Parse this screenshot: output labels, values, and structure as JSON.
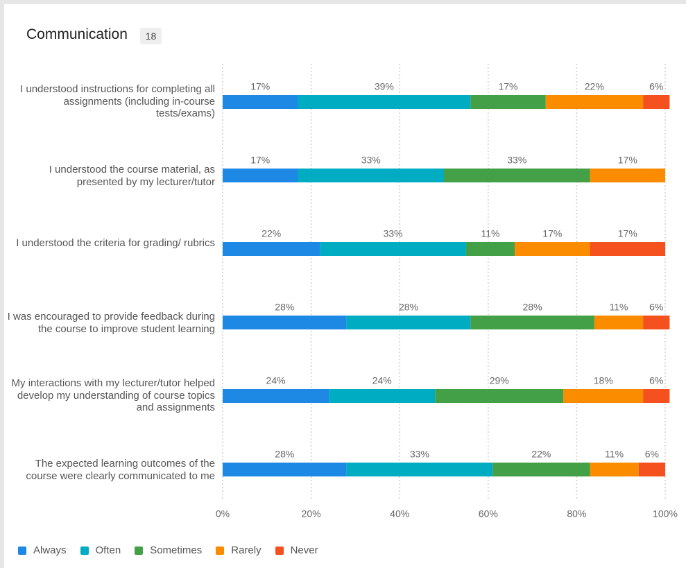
{
  "chart_data": {
    "type": "stacked-bar-horizontal",
    "title": "Communication",
    "badge": 18,
    "categories": [
      "I understood instructions for completing all assignments (including in-course tests/exams)",
      "I understood the course material, as presented by my lecturer/tutor",
      "I understood the criteria for grading/ rubrics",
      "I was encouraged to provide feedback during the course to improve student learning",
      "My interactions with my lecturer/tutor helped develop my understanding of course topics and assignments",
      "The expected learning outcomes of the course were clearly communicated to me"
    ],
    "series": [
      {
        "name": "Always",
        "color": "#1e88e5",
        "values": [
          17,
          17,
          22,
          28,
          24,
          28
        ],
        "value_labels": [
          "17%",
          "17%",
          "22%",
          "28%",
          "24%",
          "28%"
        ]
      },
      {
        "name": "Often",
        "color": "#00acc1",
        "values": [
          39,
          33,
          33,
          28,
          24,
          33
        ],
        "value_labels": [
          "39%",
          "33%",
          "33%",
          "28%",
          "24%",
          "33%"
        ]
      },
      {
        "name": "Sometimes",
        "color": "#43a047",
        "values": [
          17,
          33,
          11,
          28,
          29,
          22
        ],
        "value_labels": [
          "17%",
          "33%",
          "11%",
          "28%",
          "29%",
          "22%"
        ]
      },
      {
        "name": "Rarely",
        "color": "#fb8c00",
        "values": [
          22,
          17,
          17,
          11,
          18,
          11
        ],
        "value_labels": [
          "22%",
          "17%",
          "17%",
          "11%",
          "18%",
          "11%"
        ]
      },
      {
        "name": "Never",
        "color": "#f4511e",
        "values": [
          6,
          null,
          17,
          6,
          6,
          6
        ],
        "value_labels": [
          "6%",
          null,
          "17%",
          "6%",
          "6%",
          "6%"
        ]
      }
    ],
    "xlim": [
      0,
      100
    ],
    "xticks": [
      {
        "value": 0,
        "label": "0%"
      },
      {
        "value": 20,
        "label": "20%"
      },
      {
        "value": 40,
        "label": "40%"
      },
      {
        "value": 60,
        "label": "60%"
      },
      {
        "value": 80,
        "label": "80%"
      },
      {
        "value": 100,
        "label": "100%"
      }
    ],
    "grid": true,
    "legend": "bottom-left"
  }
}
